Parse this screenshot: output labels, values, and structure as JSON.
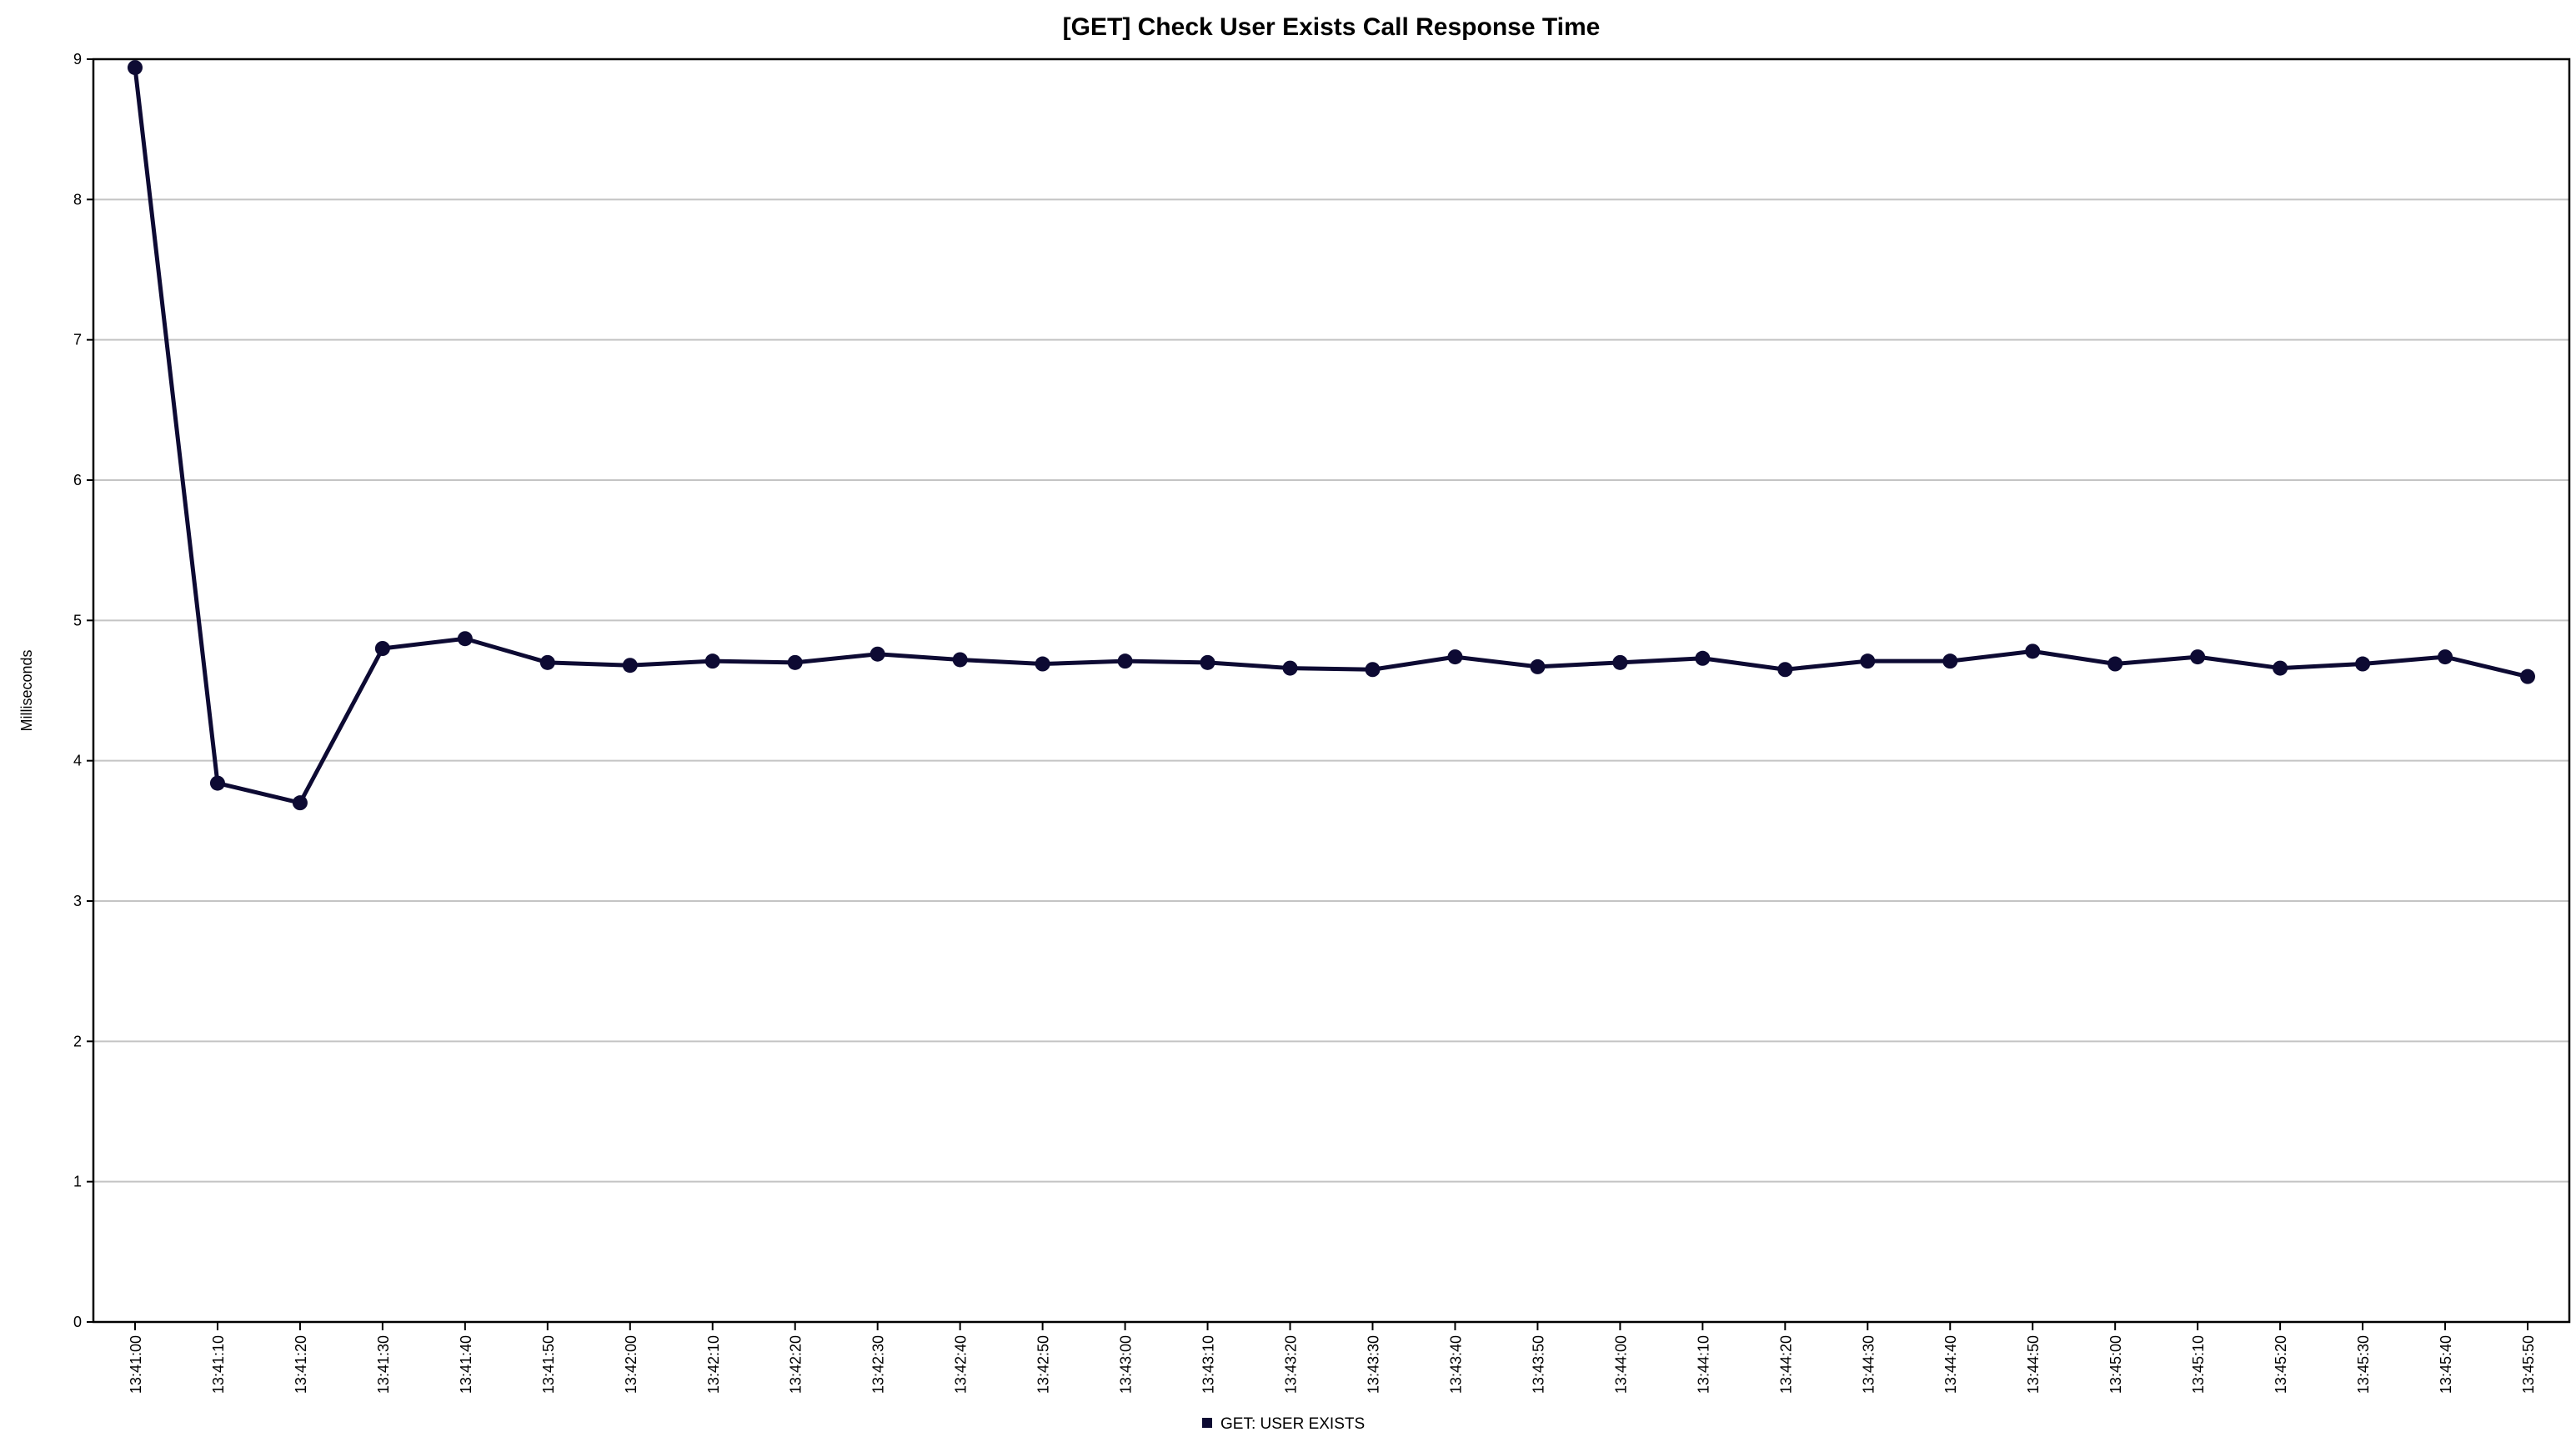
{
  "chart_data": {
    "type": "line",
    "title": "[GET] Check User Exists Call Response Time",
    "xlabel": "",
    "ylabel": "Milliseconds",
    "ylim": [
      0,
      9
    ],
    "yticks": [
      "0",
      "1",
      "2",
      "3",
      "4",
      "5",
      "6",
      "7",
      "8",
      "9"
    ],
    "grid": true,
    "legend_position": "bottom",
    "categories": [
      "13:41:00",
      "13:41:10",
      "13:41:20",
      "13:41:30",
      "13:41:40",
      "13:41:50",
      "13:42:00",
      "13:42:10",
      "13:42:20",
      "13:42:30",
      "13:42:40",
      "13:42:50",
      "13:43:00",
      "13:43:10",
      "13:43:20",
      "13:43:30",
      "13:43:40",
      "13:43:50",
      "13:44:00",
      "13:44:10",
      "13:44:20",
      "13:44:30",
      "13:44:40",
      "13:44:50",
      "13:45:00",
      "13:45:10",
      "13:45:20",
      "13:45:30",
      "13:45:40",
      "13:45:50"
    ],
    "series": [
      {
        "name": "GET: USER EXISTS",
        "color": "#0d0a33",
        "values": [
          8.94,
          3.84,
          3.7,
          4.8,
          4.87,
          4.7,
          4.68,
          4.71,
          4.7,
          4.76,
          4.72,
          4.69,
          4.71,
          4.7,
          4.66,
          4.65,
          4.74,
          4.67,
          4.7,
          4.73,
          4.65,
          4.71,
          4.71,
          4.78,
          4.69,
          4.74,
          4.66,
          4.69,
          4.74,
          4.6
        ]
      }
    ]
  }
}
